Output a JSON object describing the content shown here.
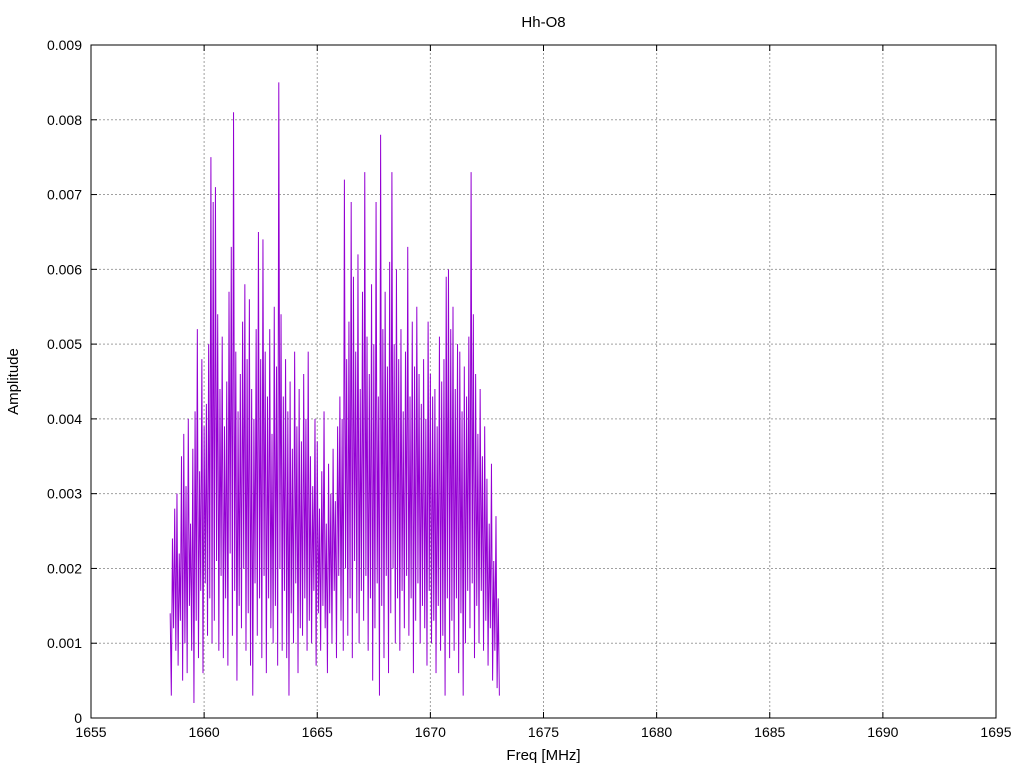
{
  "chart_data": {
    "type": "line",
    "title": "Hh-O8",
    "xlabel": "Freq [MHz]",
    "ylabel": "Amplitude",
    "xlim": [
      1655,
      1695
    ],
    "ylim": [
      0,
      0.009
    ],
    "x_ticks": [
      "1655",
      "1660",
      "1665",
      "1670",
      "1675",
      "1680",
      "1685",
      "1690",
      "1695"
    ],
    "y_ticks": [
      "0",
      "0.001",
      "0.002",
      "0.003",
      "0.004",
      "0.005",
      "0.006",
      "0.007",
      "0.008",
      "0.009"
    ],
    "grid": true,
    "legend": "none",
    "line_color": "#9400d3",
    "series": [
      {
        "x_start": 1658.5,
        "x_step": 0.05,
        "values": [
          0.0014,
          0.0003,
          0.0024,
          0.0012,
          0.0028,
          0.0009,
          0.003,
          0.0007,
          0.0022,
          0.0013,
          0.0035,
          0.0005,
          0.0038,
          0.001,
          0.0031,
          0.0006,
          0.004,
          0.0015,
          0.0026,
          0.0009,
          0.0036,
          0.0002,
          0.0041,
          0.0013,
          0.0052,
          0.0008,
          0.0033,
          0.0017,
          0.0048,
          0.0006,
          0.0039,
          0.0018,
          0.0042,
          0.0011,
          0.005,
          0.0016,
          0.0075,
          0.001,
          0.0069,
          0.0013,
          0.0071,
          0.0021,
          0.0054,
          0.0009,
          0.0044,
          0.0019,
          0.0051,
          0.0008,
          0.0039,
          0.0016,
          0.0045,
          0.0007,
          0.0057,
          0.0022,
          0.0063,
          0.0011,
          0.0081,
          0.0017,
          0.0049,
          0.0005,
          0.0041,
          0.0015,
          0.0046,
          0.0012,
          0.0053,
          0.002,
          0.0058,
          0.0009,
          0.0048,
          0.0014,
          0.0056,
          0.0007,
          0.0044,
          0.0003,
          0.004,
          0.0018,
          0.0052,
          0.0011,
          0.0065,
          0.0016,
          0.0048,
          0.0008,
          0.0064,
          0.0019,
          0.0049,
          0.0006,
          0.0043,
          0.0016,
          0.0052,
          0.0012,
          0.0038,
          0.001,
          0.0055,
          0.0015,
          0.0047,
          0.0007,
          0.0085,
          0.002,
          0.0054,
          0.0009,
          0.0043,
          0.0017,
          0.0048,
          0.0008,
          0.0041,
          0.0003,
          0.0045,
          0.0014,
          0.0036,
          0.001,
          0.0049,
          0.0018,
          0.0039,
          0.0006,
          0.0044,
          0.0012,
          0.0037,
          0.0011,
          0.0046,
          0.0016,
          0.004,
          0.0009,
          0.0049,
          0.0013,
          0.0035,
          0.001,
          0.0031,
          0.0017,
          0.004,
          0.0007,
          0.0037,
          0.0014,
          0.0028,
          0.0009,
          0.0033,
          0.0015,
          0.0041,
          0.0012,
          0.0026,
          0.0006,
          0.0034,
          0.0014,
          0.003,
          0.001,
          0.0036,
          0.0017,
          0.0029,
          0.0008,
          0.0039,
          0.0019,
          0.0043,
          0.0013,
          0.004,
          0.0009,
          0.0072,
          0.002,
          0.0048,
          0.0011,
          0.0053,
          0.0016,
          0.0069,
          0.0008,
          0.0059,
          0.0021,
          0.0049,
          0.0014,
          0.0062,
          0.001,
          0.0044,
          0.0017,
          0.0057,
          0.0013,
          0.0073,
          0.0019,
          0.0051,
          0.0009,
          0.0046,
          0.0016,
          0.0058,
          0.0005,
          0.005,
          0.0012,
          0.0069,
          0.0018,
          0.0043,
          0.0003,
          0.0078,
          0.0015,
          0.0052,
          0.0008,
          0.0057,
          0.0019,
          0.0047,
          0.0006,
          0.0061,
          0.0014,
          0.0073,
          0.002,
          0.005,
          0.001,
          0.006,
          0.0016,
          0.0048,
          0.0009,
          0.0052,
          0.0017,
          0.0041,
          0.0012,
          0.0049,
          0.0019,
          0.0063,
          0.0011,
          0.0043,
          0.0016,
          0.0053,
          0.0006,
          0.0047,
          0.0013,
          0.0055,
          0.0018,
          0.0046,
          0.001,
          0.0042,
          0.0015,
          0.0048,
          0.0012,
          0.004,
          0.0007,
          0.0053,
          0.0017,
          0.0046,
          0.001,
          0.0043,
          0.0013,
          0.0044,
          0.0006,
          0.0039,
          0.0015,
          0.0051,
          0.0009,
          0.0045,
          0.0011,
          0.0048,
          0.0003,
          0.0059,
          0.0016,
          0.006,
          0.0008,
          0.0052,
          0.0013,
          0.0055,
          0.0009,
          0.0044,
          0.0016,
          0.005,
          0.0006,
          0.0049,
          0.0014,
          0.0041,
          0.0003,
          0.0047,
          0.001,
          0.0043,
          0.0017,
          0.0051,
          0.0012,
          0.0073,
          0.0018,
          0.0054,
          0.0008,
          0.0046,
          0.0015,
          0.0038,
          0.001,
          0.0044,
          0.0017,
          0.0035,
          0.0009,
          0.0039,
          0.0013,
          0.0032,
          0.0007,
          0.0026,
          0.0012,
          0.0034,
          0.0005,
          0.0021,
          0.0009,
          0.0027,
          0.0004,
          0.0016,
          0.0003
        ]
      }
    ]
  }
}
